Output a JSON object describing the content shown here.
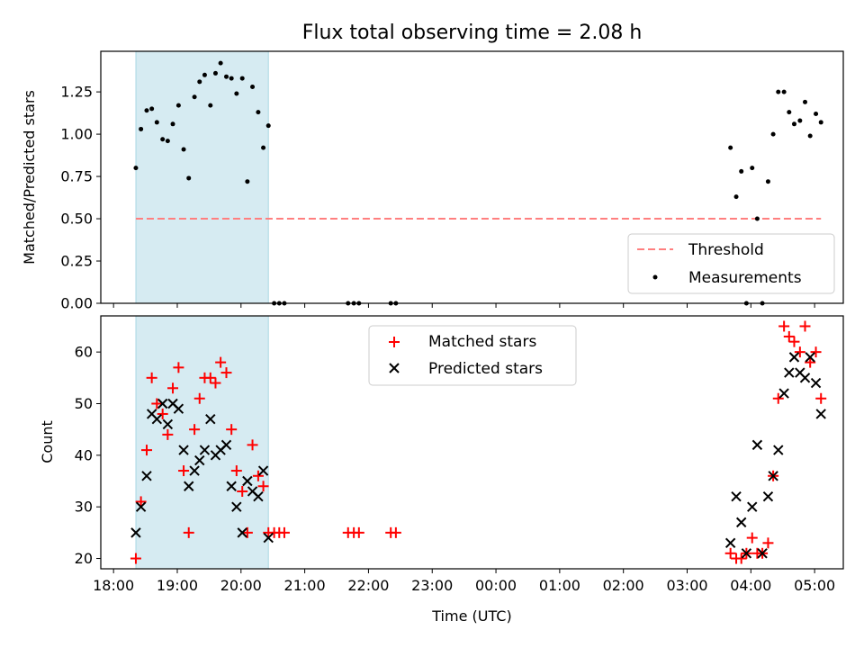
{
  "chart_data": [
    {
      "type": "scatter",
      "title": "Flux total observing time = 2.08 h",
      "xlabel": "",
      "ylabel": "Matched/Predicted stars",
      "xlim_hours": [
        17.8,
        29.45
      ],
      "ylim": [
        0,
        1.49
      ],
      "yticks": [
        0.0,
        0.25,
        0.5,
        0.75,
        1.0,
        1.25
      ],
      "ytick_labels": [
        "0.00",
        "0.25",
        "0.50",
        "0.75",
        "1.00",
        "1.25"
      ],
      "shaded_span_hours": [
        18.35,
        20.43
      ],
      "threshold": {
        "name": "Threshold",
        "value": 0.5,
        "x_range_hours": [
          18.35,
          29.1
        ],
        "color": "#ff7f7f"
      },
      "legend": {
        "location": "lower right",
        "entries": [
          "Threshold",
          "Measurements"
        ]
      },
      "series": [
        {
          "name": "Measurements",
          "color": "#000000",
          "x": [
            18.35,
            18.43,
            18.52,
            18.6,
            18.68,
            18.77,
            18.85,
            18.93,
            19.02,
            19.1,
            19.18,
            19.27,
            19.35,
            19.43,
            19.52,
            19.6,
            19.68,
            19.77,
            19.85,
            19.93,
            20.02,
            20.1,
            20.18,
            20.27,
            20.35,
            20.43,
            20.52,
            20.6,
            20.68,
            21.68,
            21.77,
            21.85,
            22.35,
            22.43,
            27.68,
            27.77,
            27.85,
            27.93,
            28.02,
            28.1,
            28.18,
            28.27,
            28.35,
            28.43,
            28.52,
            28.6,
            28.68,
            28.77,
            28.85,
            28.93,
            29.02,
            29.1
          ],
          "y": [
            0.8,
            1.03,
            1.14,
            1.15,
            1.07,
            0.97,
            0.96,
            1.06,
            1.17,
            0.91,
            0.74,
            1.22,
            1.31,
            1.35,
            1.17,
            1.36,
            1.42,
            1.34,
            1.33,
            1.24,
            1.33,
            0.72,
            1.28,
            1.13,
            0.92,
            1.05,
            0.0,
            0.0,
            0.0,
            0.0,
            0.0,
            0.0,
            0.0,
            0.0,
            0.92,
            0.63,
            0.78,
            0.0,
            0.8,
            0.5,
            0.0,
            0.72,
            1.0,
            1.25,
            1.25,
            1.13,
            1.06,
            1.08,
            1.19,
            0.99,
            1.12,
            1.07
          ]
        }
      ]
    },
    {
      "type": "scatter",
      "title": "",
      "xlabel": "Time (UTC)",
      "ylabel": "Count",
      "xlim_hours": [
        17.8,
        29.45
      ],
      "ylim": [
        18,
        67
      ],
      "yticks": [
        20,
        30,
        40,
        50,
        60
      ],
      "ytick_labels": [
        "20",
        "30",
        "40",
        "50",
        "60"
      ],
      "xticks_hours": [
        18,
        19,
        20,
        21,
        22,
        23,
        24,
        25,
        26,
        27,
        28,
        29
      ],
      "xtick_labels": [
        "18:00",
        "19:00",
        "20:00",
        "21:00",
        "22:00",
        "23:00",
        "00:00",
        "01:00",
        "02:00",
        "03:00",
        "04:00",
        "05:00"
      ],
      "shaded_span_hours": [
        18.35,
        20.43
      ],
      "legend": {
        "location": "upper center",
        "entries": [
          "Matched stars",
          "Predicted stars"
        ]
      },
      "series": [
        {
          "name": "Matched stars",
          "marker": "+",
          "color": "#ff0000",
          "x": [
            18.35,
            18.43,
            18.52,
            18.6,
            18.68,
            18.77,
            18.85,
            18.93,
            19.02,
            19.1,
            19.18,
            19.27,
            19.35,
            19.43,
            19.52,
            19.6,
            19.68,
            19.77,
            19.85,
            19.93,
            20.02,
            20.1,
            20.18,
            20.27,
            20.35,
            20.43,
            20.52,
            20.6,
            20.68,
            21.68,
            21.77,
            21.85,
            22.35,
            22.43,
            27.68,
            27.77,
            27.85,
            27.93,
            28.02,
            28.1,
            28.18,
            28.27,
            28.35,
            28.43,
            28.52,
            28.6,
            28.68,
            28.77,
            28.85,
            28.93,
            29.02,
            29.1
          ],
          "y": [
            20,
            31,
            41,
            55,
            50,
            48,
            44,
            53,
            57,
            37,
            25,
            45,
            51,
            55,
            55,
            54,
            58,
            56,
            45,
            37,
            33,
            25,
            42,
            36,
            34,
            25,
            25,
            25,
            25,
            25,
            25,
            25,
            25,
            25,
            21,
            20,
            20,
            21,
            24,
            21,
            21,
            23,
            36,
            51,
            65,
            63,
            62,
            60,
            65,
            58,
            60,
            51
          ]
        },
        {
          "name": "Predicted stars",
          "marker": "x",
          "color": "#000000",
          "x": [
            18.35,
            18.43,
            18.52,
            18.6,
            18.68,
            18.77,
            18.85,
            18.93,
            19.02,
            19.1,
            19.18,
            19.27,
            19.35,
            19.43,
            19.52,
            19.6,
            19.68,
            19.77,
            19.85,
            19.93,
            20.02,
            20.1,
            20.18,
            20.27,
            20.35,
            20.43,
            27.68,
            27.77,
            27.85,
            27.93,
            28.02,
            28.1,
            28.18,
            28.27,
            28.35,
            28.43,
            28.52,
            28.6,
            28.68,
            28.77,
            28.85,
            28.93,
            29.02,
            29.1
          ],
          "y": [
            25,
            30,
            36,
            48,
            47,
            50,
            46,
            50,
            49,
            41,
            34,
            37,
            39,
            41,
            47,
            40,
            41,
            42,
            34,
            30,
            25,
            35,
            33,
            32,
            37,
            24,
            23,
            32,
            27,
            21,
            30,
            42,
            21,
            32,
            36,
            41,
            52,
            56,
            59,
            56,
            55,
            59,
            54,
            48
          ]
        }
      ]
    }
  ]
}
